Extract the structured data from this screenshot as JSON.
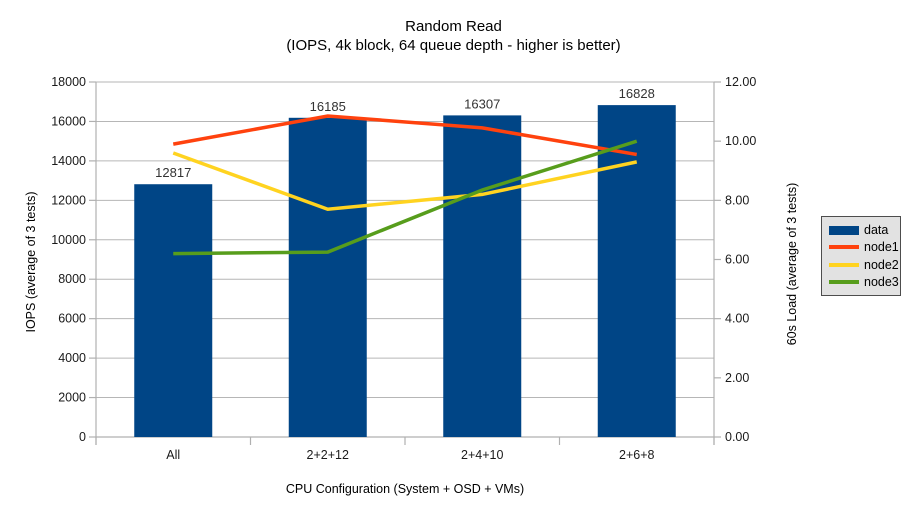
{
  "colors": {
    "background": "#ffffff",
    "grid": "#b6b6b6",
    "axis": "#b0b0b0",
    "tick_text": "#1a1a1a",
    "bar_label_text": "#333333",
    "legend_bg": "#e2e2e2",
    "legend_border": "#4d4d4d"
  },
  "chart_data": {
    "type": "bar",
    "combo": "bars with line overlay",
    "title": "Random Read",
    "subtitle": "(IOPS, 4k block, 64 queue depth - higher is better)",
    "categories": [
      "All",
      "2+2+12",
      "2+4+10",
      "2+6+8"
    ],
    "bar_series": {
      "name": "data",
      "color": "#004586",
      "axis": "left",
      "values": [
        12817,
        16185,
        16307,
        16828
      ],
      "labels": [
        "12817",
        "16185",
        "16307",
        "16828"
      ]
    },
    "line_series": [
      {
        "name": "node1",
        "color": "#FF420E",
        "axis": "right",
        "values": [
          9.9,
          10.85,
          10.45,
          9.55
        ]
      },
      {
        "name": "node2",
        "color": "#FFD320",
        "axis": "right",
        "values": [
          9.6,
          7.7,
          8.2,
          9.3
        ]
      },
      {
        "name": "node3",
        "color": "#579D1C",
        "axis": "right",
        "values": [
          6.2,
          6.25,
          8.35,
          10.0
        ]
      }
    ],
    "left_axis": {
      "label": "IOPS (average of 3 tests)",
      "min": 0,
      "max": 18000,
      "step": 2000,
      "tick_labels": [
        "0",
        "2000",
        "4000",
        "6000",
        "8000",
        "10000",
        "12000",
        "14000",
        "16000",
        "18000"
      ]
    },
    "right_axis": {
      "label": "60s Load (average of 3 tests)",
      "min": 0,
      "max": 12,
      "step": 2,
      "tick_labels": [
        "0.00",
        "2.00",
        "4.00",
        "6.00",
        "8.00",
        "10.00",
        "12.00"
      ]
    },
    "x_axis": {
      "label": "CPU Configuration (System + OSD + VMs)"
    },
    "legend": {
      "position": "right",
      "entries": [
        "data",
        "node1",
        "node2",
        "node3"
      ]
    },
    "grid": true
  }
}
